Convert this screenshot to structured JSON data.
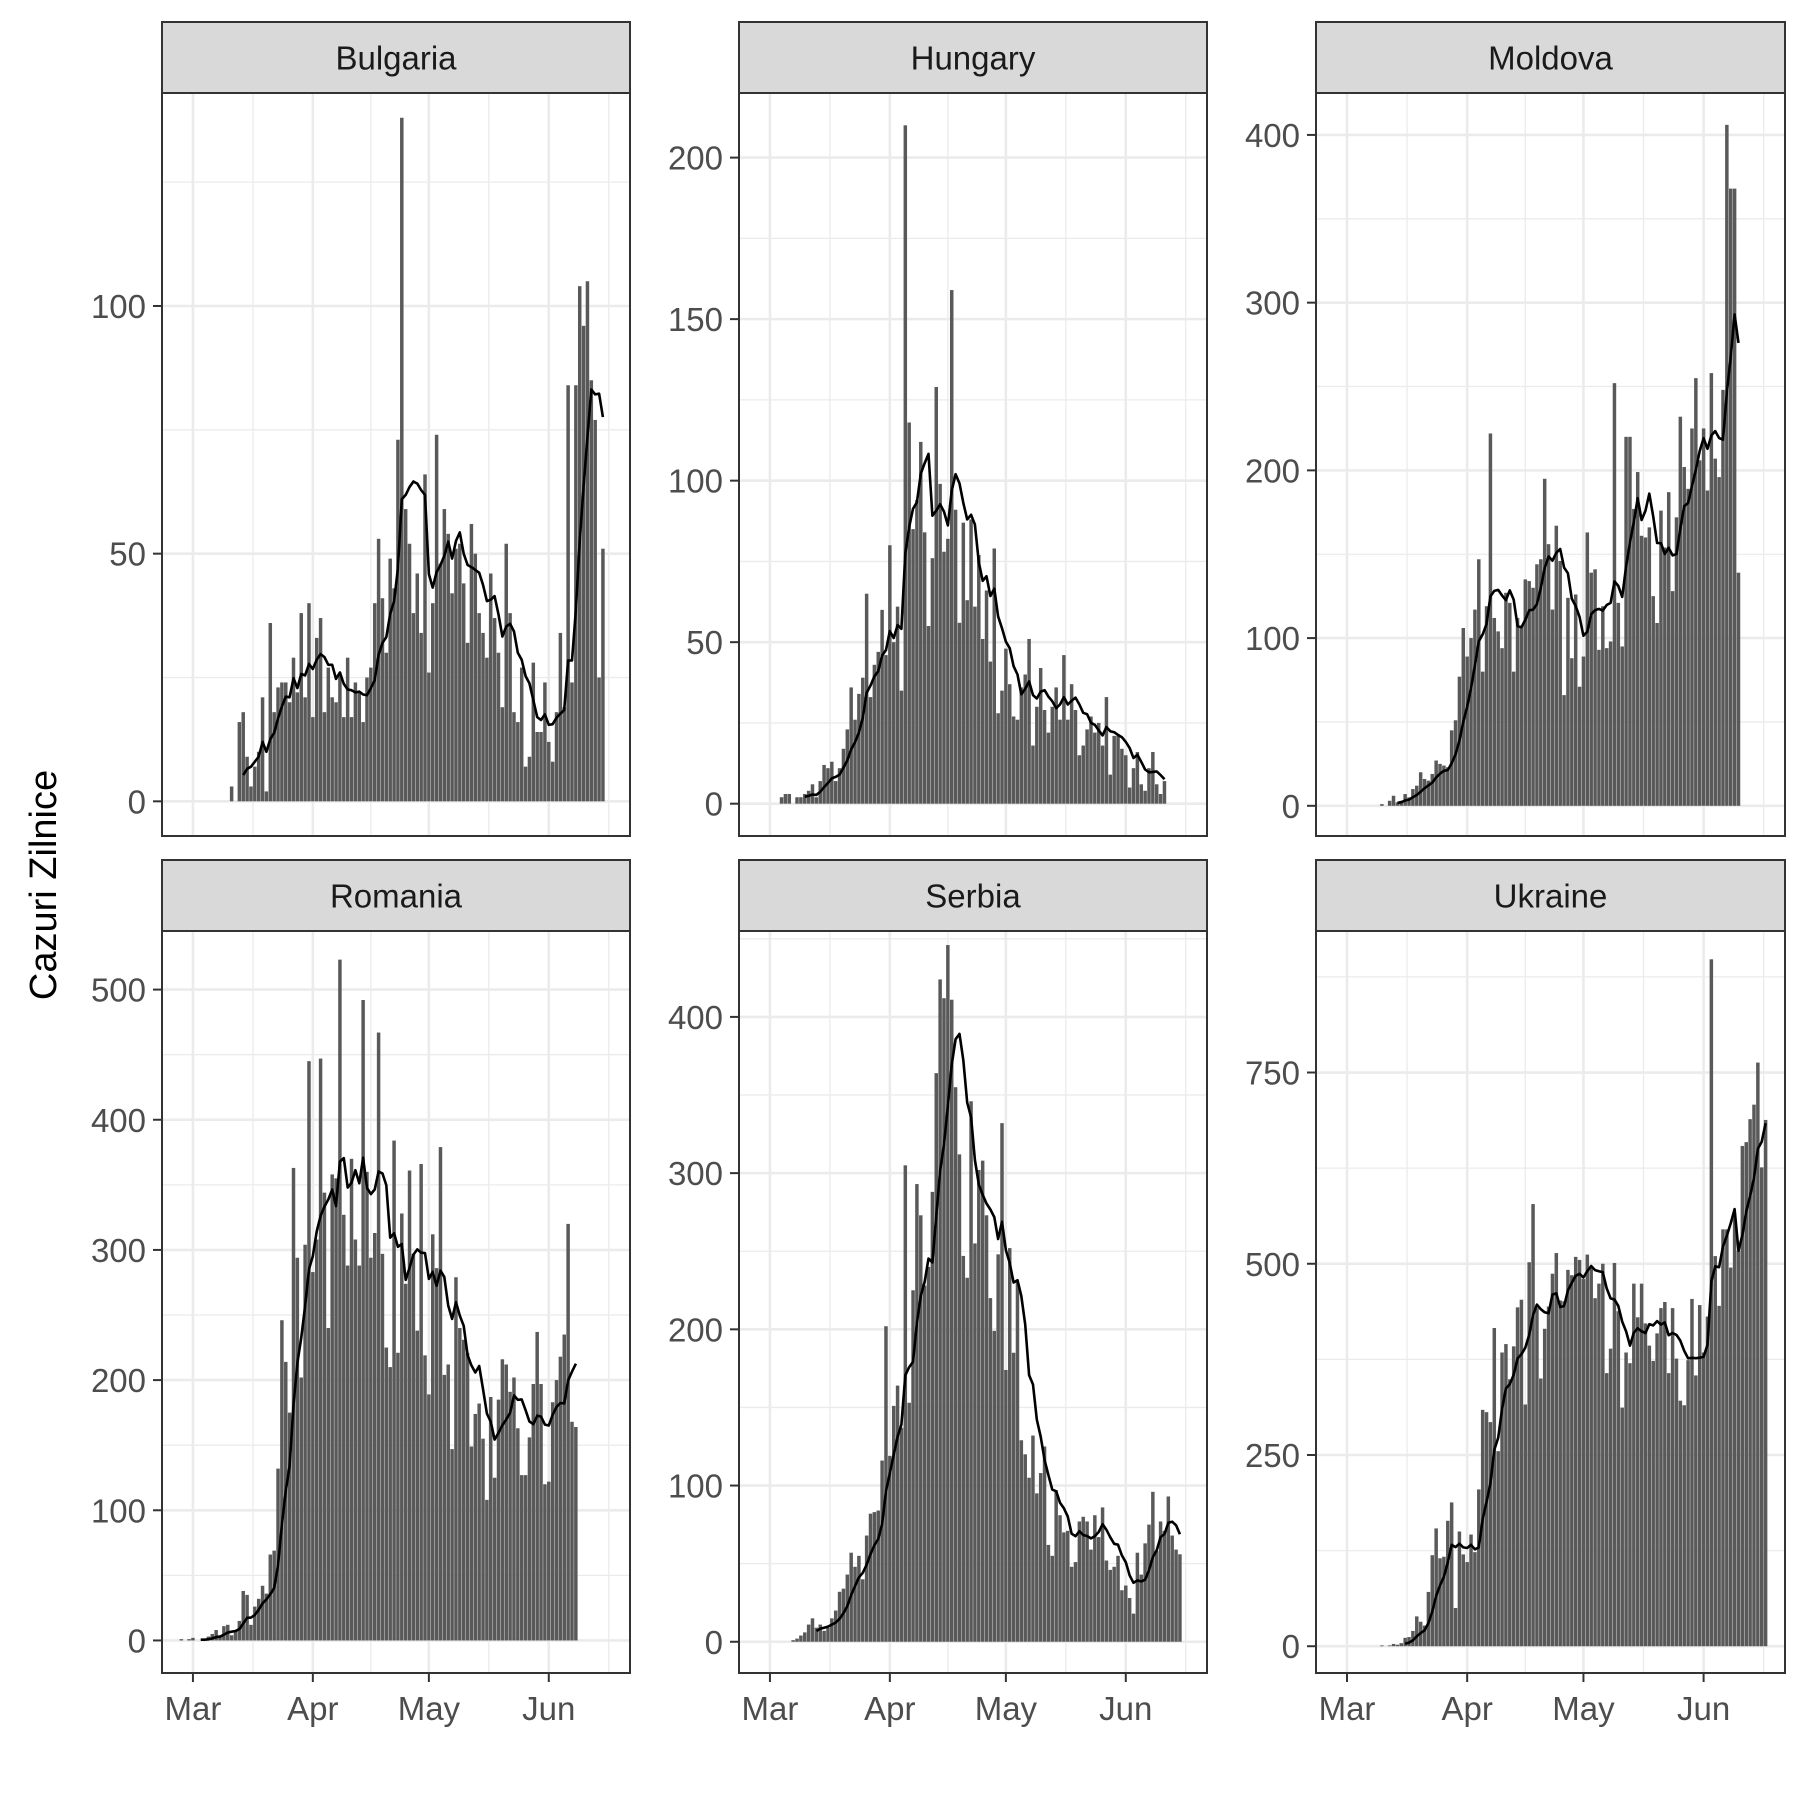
{
  "chart_data": {
    "type": "bar",
    "ylabel": "Cazuri Zilnice",
    "xlabel": "",
    "x_ticks": [
      "Mar",
      "Apr",
      "May",
      "Jun"
    ],
    "x_tick_dates": [
      "2020-03-01",
      "2020-04-01",
      "2020-05-01",
      "2020-06-01"
    ],
    "xlim": [
      "2020-02-22",
      "2020-06-22"
    ],
    "smooth_line": "7-day rolling mean",
    "colors": {
      "bar": "#595959",
      "line": "#000000",
      "strip": "#d9d9d9",
      "grid": "#ebebeb",
      "panel_border": "#333333"
    },
    "grid": true,
    "panels": [
      {
        "country": "Bulgaria",
        "ylim": [
          -7,
          143
        ],
        "y_ticks": [
          0,
          50,
          100
        ],
        "start_date": "2020-03-08",
        "values": [
          0,
          0,
          0,
          3,
          0,
          16,
          18,
          9,
          3,
          7,
          10,
          21,
          2,
          36,
          18,
          23,
          24,
          24,
          20,
          29,
          22,
          38,
          21,
          40,
          17,
          33,
          37,
          18,
          27,
          21,
          20,
          26,
          17,
          29,
          17,
          24,
          22,
          16,
          25,
          27,
          40,
          53,
          41,
          30,
          49,
          43,
          73,
          138,
          59,
          52,
          38,
          46,
          34,
          66,
          26,
          40,
          74,
          48,
          59,
          54,
          42,
          51,
          52,
          44,
          32,
          56,
          50,
          38,
          34,
          29,
          46,
          37,
          30,
          19,
          52,
          38,
          18,
          16,
          27,
          7,
          9,
          28,
          14,
          14,
          24,
          12,
          8,
          18,
          34,
          19,
          84,
          24,
          84,
          104,
          96,
          105,
          85,
          77,
          25,
          51
        ]
      },
      {
        "country": "Hungary",
        "ylim": [
          -10,
          220
        ],
        "y_ticks": [
          0,
          50,
          100,
          150,
          200
        ],
        "start_date": "2020-03-04",
        "values": [
          2,
          3,
          3,
          0,
          2,
          2,
          3,
          4,
          6,
          2,
          7,
          12,
          11,
          13,
          7,
          11,
          17,
          23,
          36,
          26,
          34,
          39,
          65,
          33,
          43,
          47,
          60,
          46,
          80,
          50,
          61,
          35,
          210,
          118,
          85,
          94,
          112,
          84,
          55,
          76,
          129,
          99,
          78,
          82,
          159,
          91,
          56,
          87,
          63,
          88,
          61,
          77,
          51,
          66,
          44,
          79,
          28,
          35,
          48,
          37,
          27,
          26,
          36,
          40,
          51,
          18,
          30,
          42,
          29,
          22,
          30,
          36,
          26,
          46,
          26,
          37,
          29,
          15,
          18,
          23,
          27,
          22,
          25,
          18,
          33,
          9,
          21,
          21,
          17,
          15,
          5,
          11,
          16,
          6,
          4,
          11,
          16,
          6,
          3,
          7
        ]
      },
      {
        "country": "Moldova",
        "ylim": [
          -18,
          425
        ],
        "y_ticks": [
          0,
          100,
          200,
          300,
          400
        ],
        "start_date": "2020-03-08",
        "values": [
          0,
          0,
          1,
          0,
          3,
          6,
          2,
          3,
          7,
          5,
          10,
          12,
          20,
          16,
          15,
          19,
          27,
          25,
          24,
          23,
          45,
          51,
          77,
          106,
          89,
          100,
          117,
          147,
          80,
          119,
          222,
          112,
          104,
          94,
          127,
          121,
          80,
          112,
          107,
          135,
          134,
          130,
          144,
          147,
          195,
          156,
          117,
          167,
          146,
          66,
          124,
          88,
          126,
          71,
          89,
          163,
          139,
          141,
          93,
          119,
          94,
          98,
          252,
          121,
          95,
          220,
          220,
          177,
          199,
          161,
          160,
          166,
          125,
          109,
          176,
          154,
          187,
          128,
          172,
          232,
          202,
          189,
          225,
          255,
          206,
          225,
          188,
          258,
          207,
          196,
          248,
          406,
          368,
          368,
          139
        ]
      },
      {
        "country": "Romania",
        "ylim": [
          -25,
          545
        ],
        "y_ticks": [
          0,
          100,
          200,
          300,
          400,
          500
        ],
        "start_date": "2020-02-26",
        "values": [
          0,
          1,
          0,
          1,
          2,
          0,
          0,
          0,
          3,
          5,
          8,
          4,
          11,
          12,
          4,
          7,
          15,
          38,
          35,
          12,
          26,
          32,
          42,
          36,
          66,
          69,
          132,
          246,
          214,
          175,
          363,
          294,
          202,
          304,
          445,
          283,
          308,
          447,
          344,
          240,
          358,
          355,
          523,
          327,
          288,
          370,
          308,
          288,
          492,
          360,
          294,
          313,
          467,
          297,
          225,
          210,
          384,
          221,
          328,
          274,
          361,
          297,
          238,
          366,
          219,
          189,
          312,
          286,
          379,
          204,
          212,
          147,
          279,
          240,
          231,
          221,
          149,
          174,
          182,
          155,
          108,
          187,
          125,
          185,
          216,
          212,
          191,
          202,
          163,
          127,
          127,
          156,
          197,
          237,
          197,
          120,
          122,
          183,
          200,
          218,
          235,
          320,
          168,
          164
        ]
      },
      {
        "country": "Serbia",
        "ylim": [
          -20,
          455
        ],
        "y_ticks": [
          0,
          100,
          200,
          300,
          400
        ],
        "start_date": "2020-03-07",
        "values": [
          1,
          2,
          4,
          6,
          11,
          15,
          9,
          11,
          7,
          9,
          15,
          20,
          32,
          34,
          43,
          57,
          48,
          55,
          40,
          68,
          82,
          83,
          84,
          116,
          202,
          119,
          151,
          164,
          137,
          305,
          153,
          225,
          293,
          273,
          228,
          240,
          288,
          364,
          424,
          412,
          446,
          411,
          355,
          312,
          247,
          233,
          346,
          255,
          302,
          308,
          273,
          220,
          199,
          248,
          332,
          174,
          252,
          185,
          230,
          129,
          120,
          105,
          132,
          95,
          108,
          125,
          62,
          55,
          97,
          81,
          70,
          71,
          48,
          51,
          77,
          80,
          77,
          59,
          81,
          67,
          86,
          52,
          46,
          48,
          55,
          33,
          36,
          28,
          18,
          57,
          43,
          63,
          75,
          96,
          58,
          77,
          71,
          93,
          68,
          59,
          56
        ]
      },
      {
        "country": "Ukraine",
        "ylim": [
          -35,
          935
        ],
        "y_ticks": [
          0,
          250,
          500,
          750
        ],
        "start_date": "2020-03-10",
        "values": [
          1,
          0,
          1,
          3,
          2,
          4,
          11,
          12,
          20,
          39,
          32,
          27,
          71,
          119,
          154,
          115,
          117,
          164,
          188,
          50,
          150,
          120,
          110,
          146,
          123,
          205,
          309,
          306,
          293,
          416,
          255,
          384,
          395,
          349,
          392,
          443,
          453,
          316,
          502,
          578,
          442,
          350,
          415,
          444,
          487,
          514,
          452,
          451,
          492,
          485,
          509,
          505,
          480,
          512,
          496,
          455,
          474,
          500,
          357,
          389,
          501,
          438,
          312,
          384,
          370,
          474,
          430,
          474,
          422,
          393,
          373,
          409,
          442,
          450,
          357,
          442,
          376,
          321,
          315,
          374,
          454,
          354,
          446,
          384,
          431,
          898,
          510,
          445,
          545,
          545,
          495,
          562,
          517,
          654,
          659,
          689,
          708,
          763,
          626,
          688
        ]
      }
    ]
  }
}
